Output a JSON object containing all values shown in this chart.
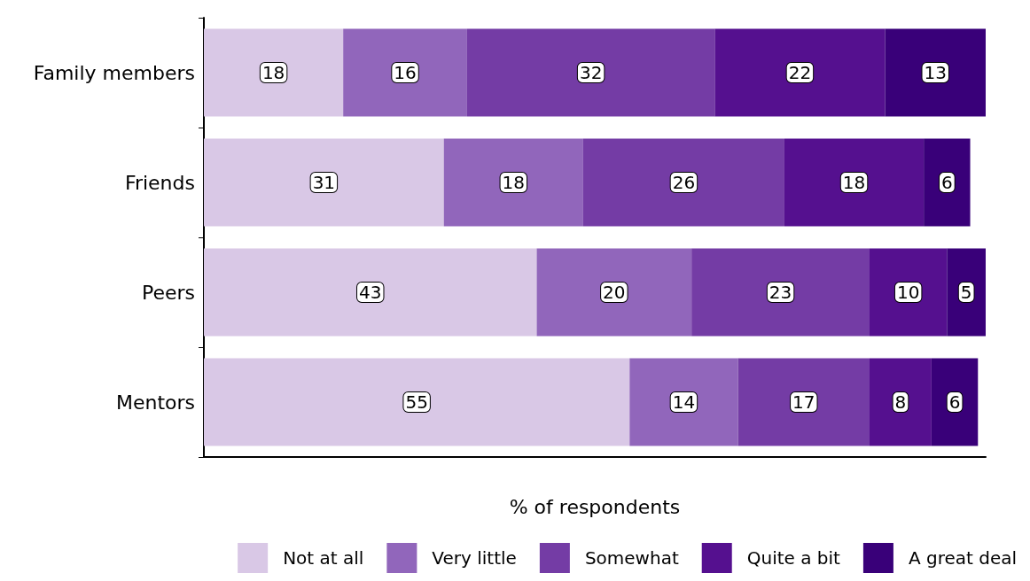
{
  "chart_data": {
    "type": "bar",
    "orientation": "horizontal",
    "stacked": true,
    "xlabel": "% of respondents",
    "categories": [
      "Family members",
      "Friends",
      "Peers",
      "Mentors"
    ],
    "series": [
      {
        "name": "Not at all",
        "color": "#d9c8e6",
        "values": [
          18,
          31,
          43,
          55
        ]
      },
      {
        "name": "Very little",
        "color": "#9166bb",
        "values": [
          16,
          18,
          20,
          14
        ]
      },
      {
        "name": "Somewhat",
        "color": "#743ca5",
        "values": [
          32,
          26,
          23,
          17
        ]
      },
      {
        "name": "Quite a bit",
        "color": "#55108f",
        "values": [
          22,
          18,
          10,
          8
        ]
      },
      {
        "name": "A great deal",
        "color": "#390079",
        "values": [
          13,
          6,
          5,
          6
        ]
      }
    ],
    "data_labels": true,
    "legend": "bottom",
    "grid": false
  }
}
